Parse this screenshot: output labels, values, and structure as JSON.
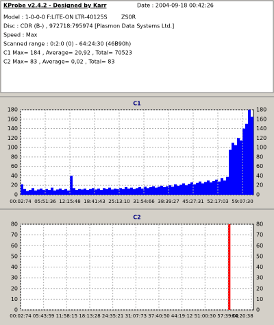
{
  "header": {
    "title": "KProbe v2.4.2 - Designed by Karr",
    "date": "Date : 2004-09-18 00:42:26",
    "lines": [
      "Model : 1-0-0-0 F:LITE-ON LTR-40125S",
      "Disc : CDR (B-) , 972718:795974 [Plasmon Data Systems Ltd.]",
      "Speed : Max",
      "Scanned range : 0:2:0 (0) - 64:24:30 (46B90h)",
      "C1 Max= 184 , Average= 20,92 , Total= 70523",
      "C2 Max= 83 , Average= 0,02 , Total= 83"
    ],
    "firmware": "ZS0R"
  },
  "chart_data": [
    {
      "type": "bar",
      "title": "C1",
      "color": "#0000ff",
      "grid": true,
      "ylim": [
        0,
        180
      ],
      "yticks": [
        0,
        20,
        40,
        60,
        80,
        100,
        120,
        140,
        160,
        180
      ],
      "categories": [
        "00:02:74",
        null,
        null,
        null,
        null,
        null,
        null,
        null,
        null,
        "05:51:36",
        null,
        null,
        null,
        null,
        null,
        null,
        null,
        null,
        "12:15:48",
        null,
        null,
        null,
        null,
        null,
        null,
        null,
        null,
        "18:41:43",
        null,
        null,
        null,
        null,
        null,
        null,
        null,
        null,
        "25:13:10",
        null,
        null,
        null,
        null,
        null,
        null,
        null,
        null,
        "31:54:66",
        null,
        null,
        null,
        null,
        null,
        null,
        null,
        null,
        "38:39:27",
        null,
        null,
        null,
        null,
        null,
        null,
        null,
        null,
        "45:27:31",
        null,
        null,
        null,
        null,
        null,
        null,
        null,
        null,
        "52:17:03",
        null,
        null,
        null,
        null,
        null,
        null,
        null,
        null,
        "59:07:30",
        null,
        null,
        null
      ],
      "values": [
        22,
        12,
        8,
        10,
        14,
        9,
        11,
        13,
        10,
        12,
        10,
        15,
        9,
        11,
        13,
        10,
        12,
        9,
        40,
        14,
        10,
        12,
        11,
        13,
        10,
        12,
        14,
        11,
        13,
        10,
        14,
        12,
        15,
        11,
        13,
        12,
        14,
        12,
        16,
        13,
        15,
        12,
        14,
        16,
        13,
        17,
        14,
        16,
        18,
        15,
        17,
        19,
        16,
        18,
        20,
        17,
        22,
        19,
        21,
        24,
        20,
        23,
        26,
        22,
        25,
        28,
        24,
        27,
        30,
        26,
        29,
        32,
        28,
        35,
        30,
        38,
        95,
        110,
        105,
        120,
        115,
        140,
        150,
        184,
        165
      ]
    },
    {
      "type": "bar",
      "title": "C2",
      "color": "#ff0000",
      "grid": true,
      "ylim": [
        0,
        80
      ],
      "yticks": [
        0,
        10,
        20,
        30,
        40,
        50,
        60,
        70,
        80
      ],
      "categories": [
        "00:02:74",
        null,
        null,
        null,
        null,
        null,
        null,
        null,
        null,
        null,
        "05:43:59",
        null,
        null,
        null,
        null,
        null,
        null,
        null,
        null,
        null,
        "11:58:15",
        null,
        null,
        null,
        null,
        null,
        null,
        null,
        null,
        null,
        "18:13:28",
        null,
        null,
        null,
        null,
        null,
        null,
        null,
        null,
        null,
        "24:35:21",
        null,
        null,
        null,
        null,
        null,
        null,
        null,
        null,
        null,
        "31:07:73",
        null,
        null,
        null,
        null,
        null,
        null,
        null,
        null,
        null,
        "37:40:50",
        null,
        null,
        null,
        null,
        null,
        null,
        null,
        null,
        null,
        "44:19:12",
        null,
        null,
        null,
        null,
        null,
        null,
        null,
        null,
        null,
        "51:00:30",
        null,
        null,
        null,
        null,
        null,
        null,
        null,
        null,
        null,
        "57:39:01",
        null,
        null,
        null,
        null,
        null,
        null,
        null,
        null,
        null,
        "64:20:38"
      ],
      "values": [
        0,
        0,
        0,
        0,
        0,
        0,
        0,
        0,
        0,
        0,
        0,
        0,
        0,
        0,
        0,
        0,
        0,
        0,
        0,
        0,
        0,
        0,
        0,
        0,
        0,
        0,
        0,
        0,
        0,
        0,
        0,
        0,
        0,
        0,
        0,
        0,
        0,
        0,
        0,
        0,
        0,
        0,
        0,
        0,
        0,
        0,
        0,
        0,
        0,
        0,
        0,
        0,
        0,
        0,
        0,
        0,
        0,
        0,
        0,
        0,
        0,
        0,
        0,
        0,
        0,
        0,
        0,
        0,
        0,
        0,
        0,
        0,
        0,
        0,
        0,
        0,
        0,
        0,
        0,
        0,
        0,
        0,
        0,
        0,
        0,
        0,
        0,
        0,
        0,
        0,
        83,
        0,
        0,
        0,
        0,
        0,
        0,
        0,
        0,
        0,
        0
      ]
    }
  ]
}
